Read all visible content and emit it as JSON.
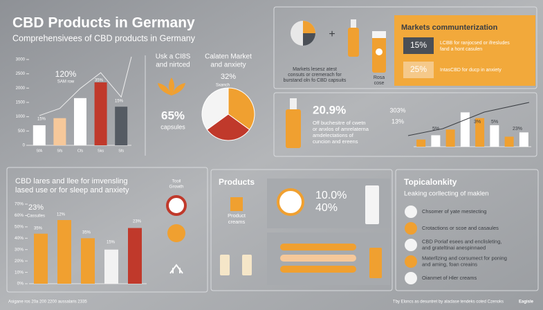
{
  "header": {
    "title": "CBD Products in Germany",
    "subtitle": "Comprehensivees of CBD products in Germany"
  },
  "sales_chart": {
    "type": "bar",
    "categories": [
      "SfA",
      "Sfs",
      "Cfs",
      "Sks",
      "Sfs"
    ],
    "values": [
      700,
      950,
      1650,
      2200,
      1350
    ],
    "colors": [
      "#ffffff",
      "#f6c89a",
      "#ffffff",
      "#c0392b",
      "#555b63"
    ],
    "ylim": [
      0,
      3000
    ],
    "yticks": [
      0,
      500,
      1000,
      1500,
      2000,
      2500,
      3000
    ],
    "annotations": [
      "120%",
      "SAM row",
      "15%",
      "35%",
      "15%"
    ]
  },
  "capsules": {
    "heading": [
      "Usk a CI8S",
      "and nirtced"
    ],
    "value": "65%",
    "label": "capsules"
  },
  "market_pie": {
    "type": "pie",
    "heading": [
      "Calaten Market",
      "and anxiety"
    ],
    "value_text": "32%",
    "note": "Sxanch",
    "values": [
      35,
      30,
      35
    ],
    "colors": [
      "#f0a030",
      "#c0392b",
      "#f4f4f4"
    ]
  },
  "consumers": {
    "text": [
      "Markets lesesz atest",
      "consuts or cremerach for",
      "burstand oln fo CBD capsuits"
    ],
    "jar_label": [
      "Rosa",
      "cose"
    ]
  },
  "markets_box": {
    "title": "Markets communterization",
    "rows": [
      {
        "value": "15%",
        "text": [
          "LCBB for ranjocsed or ifresludes",
          "fand a hont casulen"
        ]
      },
      {
        "value": "25%",
        "text": [
          "IntasCBD for ducp in anxiety"
        ]
      }
    ]
  },
  "oil": {
    "value": "20.9%",
    "text": [
      "Off buchesitre of cwetn",
      "or anxlos of amrelaterna",
      "amdelectations of",
      "cuncion and ereens"
    ]
  },
  "oil_chart": {
    "type": "bar",
    "values": [
      10,
      16,
      24,
      48,
      40,
      30,
      14,
      20
    ],
    "colors": [
      "#f0a030",
      "#ffffff",
      "#f0a030",
      "#ffffff",
      "#f0a030",
      "#ffffff",
      "#f0a030",
      "#ffffff"
    ],
    "ylim": [
      0,
      60
    ],
    "annotations": [
      "303%",
      "13%",
      "5%",
      "3%",
      "5%",
      "23%"
    ]
  },
  "sleep": {
    "text": [
      "CBD lares and llee for imvensling",
      "lased use or for sleep and anxiety"
    ],
    "growth": [
      "Tcoil",
      "Growth"
    ]
  },
  "sleep_chart": {
    "type": "bar",
    "values": [
      44,
      56,
      40,
      30,
      49
    ],
    "colors": [
      "#f0a030",
      "#f0a030",
      "#f0a030",
      "#f2f2f2",
      "#c0392b"
    ],
    "ylim": [
      0,
      70
    ],
    "yticks": [
      {
        "value": 0,
        "label": "0%"
      },
      {
        "value": 10,
        "label": "10%"
      },
      {
        "value": 20,
        "label": "20%"
      },
      {
        "value": 30,
        "label": "30%"
      },
      {
        "value": 40,
        "label": "40%"
      },
      {
        "value": 50,
        "label": "50%"
      },
      {
        "value": 60,
        "label": "60%"
      },
      {
        "value": 70,
        "label": "70%"
      }
    ],
    "annotations": [
      "23%",
      "Cassulles",
      "35%",
      "12%",
      "35%",
      "15%",
      "23%"
    ]
  },
  "products": {
    "title": "Products",
    "label": [
      "Product",
      "creams"
    ],
    "value1": "10.0%",
    "value2": "40%"
  },
  "topical": {
    "title": "Topicalonkity",
    "subtitle": "Leaking corllecting of maklen",
    "items": [
      [
        "Chsomer of yate mestecting"
      ],
      [
        "Crotactions or scoe and casaules"
      ],
      [
        "CBD Poriaf esees and enclisleting,",
        "and grateltinai anespinnaed"
      ],
      [
        "Materllzing and corsumect for poning",
        "and aming, foan creains"
      ],
      [
        "Oianmet of Hler creams"
      ]
    ]
  },
  "footer": {
    "left": "Asigane ros 20a 200 2200 aussalaris 2335",
    "right": "Tby Eloncs as desuntret by alaclase tendeks coted Czenoks",
    "logo": "Eagisle"
  }
}
